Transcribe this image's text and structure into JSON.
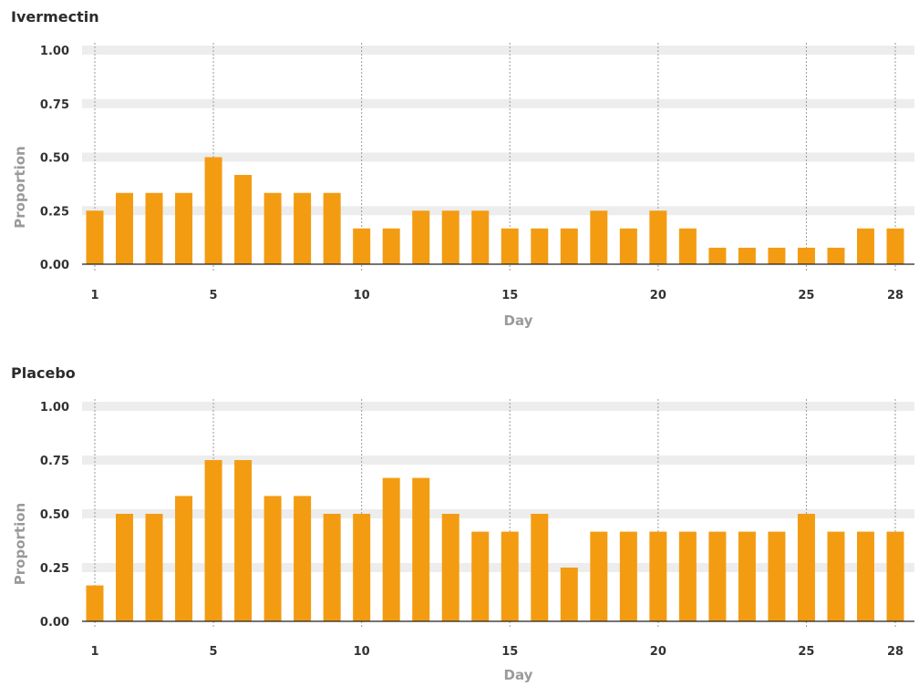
{
  "chart_data": [
    {
      "type": "bar",
      "title": "Ivermectin",
      "xlabel": "Day",
      "ylabel": "Proportion",
      "ylim": [
        0,
        1
      ],
      "yticks": [
        "0.00",
        "0.25",
        "0.50",
        "0.75",
        "1.00"
      ],
      "xticks": [
        "1",
        "5",
        "10",
        "15",
        "20",
        "25",
        "28"
      ],
      "x": [
        1,
        2,
        3,
        4,
        5,
        6,
        7,
        8,
        9,
        10,
        11,
        12,
        13,
        14,
        15,
        16,
        17,
        18,
        19,
        20,
        21,
        22,
        23,
        24,
        25,
        26,
        27,
        28
      ],
      "values": [
        0.25,
        0.333,
        0.333,
        0.333,
        0.5,
        0.417,
        0.333,
        0.333,
        0.333,
        0.167,
        0.167,
        0.25,
        0.25,
        0.25,
        0.167,
        0.167,
        0.167,
        0.25,
        0.167,
        0.25,
        0.167,
        0.077,
        0.077,
        0.077,
        0.077,
        0.077,
        0.167,
        0.167
      ],
      "bar_color": "#f39c12",
      "grid": true
    },
    {
      "type": "bar",
      "title": "Placebo",
      "xlabel": "Day",
      "ylabel": "Proportion",
      "ylim": [
        0,
        1
      ],
      "yticks": [
        "0.00",
        "0.25",
        "0.50",
        "0.75",
        "1.00"
      ],
      "xticks": [
        "1",
        "5",
        "10",
        "15",
        "20",
        "25",
        "28"
      ],
      "x": [
        1,
        2,
        3,
        4,
        5,
        6,
        7,
        8,
        9,
        10,
        11,
        12,
        13,
        14,
        15,
        16,
        17,
        18,
        19,
        20,
        21,
        22,
        23,
        24,
        25,
        26,
        27,
        28
      ],
      "values": [
        0.167,
        0.5,
        0.5,
        0.583,
        0.75,
        0.75,
        0.583,
        0.583,
        0.5,
        0.5,
        0.667,
        0.667,
        0.5,
        0.417,
        0.417,
        0.5,
        0.25,
        0.417,
        0.417,
        0.417,
        0.417,
        0.417,
        0.417,
        0.417,
        0.5,
        0.417,
        0.417,
        0.417
      ],
      "bar_color": "#f39c12",
      "grid": true
    }
  ]
}
